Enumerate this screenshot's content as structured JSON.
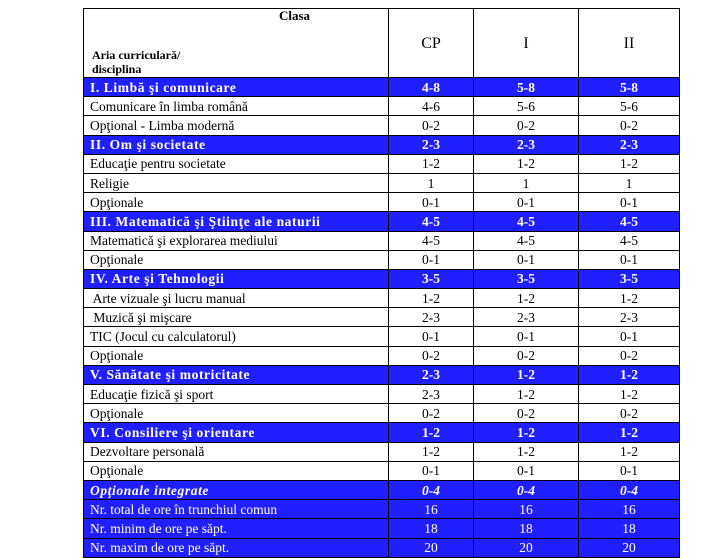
{
  "table": {
    "corner": {
      "top": "Clasa",
      "bottom": "Aria curriculară/ disciplina"
    },
    "columns": [
      "CP",
      "I",
      "II"
    ],
    "rows": [
      {
        "cells": [
          "I. Limbă şi comunicare",
          "4-8",
          "5-8",
          "5-8"
        ],
        "fill": "#1f1fff",
        "bold": true
      },
      {
        "cells": [
          "Comunicare în limba română",
          "4-6",
          "5-6",
          "5-6"
        ]
      },
      {
        "cells": [
          "Opţional - Limba modernă",
          "0-2",
          "0-2",
          "0-2"
        ]
      },
      {
        "cells": [
          "II. Om şi societate",
          "2-3",
          "2-3",
          "2-3"
        ],
        "fill": "#1f1fff",
        "bold": true
      },
      {
        "cells": [
          "Educaţie pentru societate",
          "1-2",
          "1-2",
          "1-2"
        ]
      },
      {
        "cells": [
          "Religie",
          "1",
          "1",
          "1"
        ]
      },
      {
        "cells": [
          "Opţionale",
          "0-1",
          "0-1",
          "0-1"
        ]
      },
      {
        "cells": [
          "III. Matematică şi Ştiinţe ale naturii",
          "4-5",
          "4-5",
          "4-5"
        ],
        "fill": "#1f1fff",
        "bold": true
      },
      {
        "cells": [
          "Matematică şi explorarea mediului",
          "4-5",
          "4-5",
          "4-5"
        ]
      },
      {
        "cells": [
          "Opţionale",
          "0-1",
          "0-1",
          "0-1"
        ]
      },
      {
        "cells": [
          "IV. Arte şi Tehnologii",
          "3-5",
          "3-5",
          "3-5"
        ],
        "fill": "#1f1fff",
        "bold": true
      },
      {
        "cells": [
          " Arte vizuale şi lucru manual",
          "1-2",
          "1-2",
          "1-2"
        ]
      },
      {
        "cells": [
          " Muzică şi mişcare",
          "2-3",
          "2-3",
          "2-3"
        ]
      },
      {
        "cells": [
          "TIC (Jocul cu calculatorul)",
          "0-1",
          "0-1",
          "0-1"
        ]
      },
      {
        "cells": [
          "Opţionale",
          "0-2",
          "0-2",
          "0-2"
        ]
      },
      {
        "cells": [
          "V. Sănătate şi motricitate",
          "2-3",
          "1-2",
          "1-2"
        ],
        "fill": "#1f1fff",
        "bold": true
      },
      {
        "cells": [
          "Educaţie fizică şi sport",
          "2-3",
          "1-2",
          "1-2"
        ]
      },
      {
        "cells": [
          "Opţionale",
          "0-2",
          "0-2",
          "0-2"
        ]
      },
      {
        "cells": [
          "VI. Consiliere şi orientare",
          "1-2",
          "1-2",
          "1-2"
        ],
        "fill": "#1f1fff",
        "bold": true
      },
      {
        "cells": [
          "Dezvoltare personală",
          "1-2",
          "1-2",
          "1-2"
        ]
      },
      {
        "cells": [
          "Opţionale",
          "0-1",
          "0-1",
          "0-1"
        ]
      },
      {
        "cells": [
          "Opţionale integrate",
          "0-4",
          "0-4",
          "0-4"
        ],
        "fill": "#1f1fff",
        "bold": true,
        "italic": true
      },
      {
        "cells": [
          "Nr. total de ore în trunchiul comun",
          "16",
          "16",
          "16"
        ],
        "fill": "#1f1fff"
      },
      {
        "cells": [
          "Nr. minim de ore pe săpt.",
          "18",
          "18",
          "18"
        ],
        "fill": "#1f1fff"
      },
      {
        "cells": [
          "Nr. maxim de ore pe săpt.",
          "20",
          "20",
          "20"
        ],
        "fill": "#1f1fff"
      }
    ]
  }
}
